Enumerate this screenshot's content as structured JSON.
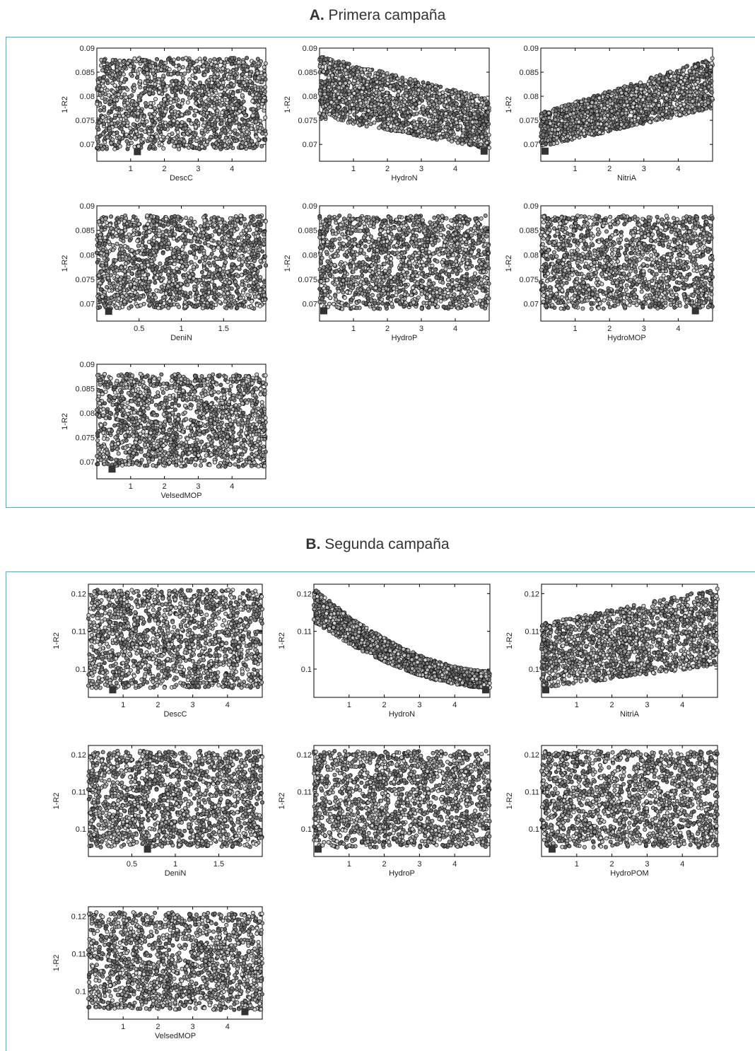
{
  "sections": [
    {
      "letter": "A.",
      "title": "Primera campaña"
    },
    {
      "letter": "B.",
      "title": "Segunda campaña"
    }
  ],
  "chart_data": [
    {
      "type": "scatter",
      "section": "A",
      "xlabel": "DescC",
      "ylabel": "1-R2",
      "xlim": [
        0,
        5
      ],
      "ylim": [
        0.0665,
        0.09
      ],
      "xticks": [
        1,
        2,
        3,
        4
      ],
      "yticks": [
        0.07,
        0.075,
        0.08,
        0.085,
        0.09
      ],
      "ytick_labels": [
        "0.07",
        "0.075",
        "0.08",
        "0.085",
        "0.09"
      ],
      "xtick_labels": [
        "1",
        "2",
        "3",
        "4"
      ],
      "trend": "flat",
      "n_points": 1500,
      "y_min": 0.069,
      "y_max": 0.088,
      "best": [
        1.2,
        0.0685
      ]
    },
    {
      "type": "scatter",
      "section": "A",
      "xlabel": "HydroN",
      "ylabel": "1-R2",
      "xlim": [
        0,
        5
      ],
      "ylim": [
        0.0665,
        0.09
      ],
      "xticks": [
        1,
        2,
        3,
        4
      ],
      "yticks": [
        0.07,
        0.075,
        0.08,
        0.085,
        0.09
      ],
      "ytick_labels": [
        "0.07",
        "0.075",
        "0.08",
        "0.085",
        "0.09"
      ],
      "xtick_labels": [
        "1",
        "2",
        "3",
        "4"
      ],
      "trend": "decreasing",
      "n_points": 1500,
      "trend_start": [
        0.0755,
        0.0885
      ],
      "trend_end": [
        0.069,
        0.0795
      ],
      "best": [
        4.85,
        0.0686
      ]
    },
    {
      "type": "scatter",
      "section": "A",
      "xlabel": "NitriA",
      "ylabel": "1-R2",
      "xlim": [
        0,
        5
      ],
      "ylim": [
        0.0665,
        0.09
      ],
      "xticks": [
        1,
        2,
        3,
        4
      ],
      "yticks": [
        0.07,
        0.075,
        0.08,
        0.085,
        0.09
      ],
      "ytick_labels": [
        "0.07",
        "0.075",
        "0.08",
        "0.085",
        "0.09"
      ],
      "xtick_labels": [
        "1",
        "2",
        "3",
        "4"
      ],
      "trend": "increasing",
      "n_points": 1500,
      "trend_start": [
        0.0695,
        0.0765
      ],
      "trend_end": [
        0.0775,
        0.088
      ],
      "best": [
        0.1,
        0.0686
      ]
    },
    {
      "type": "scatter",
      "section": "A",
      "xlabel": "DeniN",
      "ylabel": "1-R2",
      "xlim": [
        0,
        2
      ],
      "ylim": [
        0.0665,
        0.09
      ],
      "xticks": [
        0.5,
        1,
        1.5
      ],
      "yticks": [
        0.07,
        0.075,
        0.08,
        0.085,
        0.09
      ],
      "ytick_labels": [
        "0.07",
        "0.075",
        "0.08",
        "0.085",
        "0.09"
      ],
      "xtick_labels": [
        "0.5",
        "1",
        "1.5"
      ],
      "trend": "flat",
      "n_points": 1500,
      "y_min": 0.069,
      "y_max": 0.088,
      "best": [
        0.14,
        0.0685
      ]
    },
    {
      "type": "scatter",
      "section": "A",
      "xlabel": "HydroP",
      "ylabel": "1-R2",
      "xlim": [
        0,
        5
      ],
      "ylim": [
        0.0665,
        0.09
      ],
      "xticks": [
        1,
        2,
        3,
        4
      ],
      "yticks": [
        0.07,
        0.075,
        0.08,
        0.085,
        0.09
      ],
      "ytick_labels": [
        "0.07",
        "0.075",
        "0.08",
        "0.085",
        "0.09"
      ],
      "xtick_labels": [
        "1",
        "2",
        "3",
        "4"
      ],
      "trend": "flat",
      "n_points": 1500,
      "y_min": 0.069,
      "y_max": 0.088,
      "best": [
        0.1,
        0.0686
      ]
    },
    {
      "type": "scatter",
      "section": "A",
      "xlabel": "HydroMOP",
      "ylabel": "1-R2",
      "xlim": [
        0,
        5
      ],
      "ylim": [
        0.0665,
        0.09
      ],
      "xticks": [
        1,
        2,
        3,
        4
      ],
      "yticks": [
        0.07,
        0.075,
        0.08,
        0.085,
        0.09
      ],
      "ytick_labels": [
        "0.07",
        "0.075",
        "0.08",
        "0.085",
        "0.09"
      ],
      "xtick_labels": [
        "1",
        "2",
        "3",
        "4"
      ],
      "trend": "flat",
      "n_points": 1500,
      "y_min": 0.069,
      "y_max": 0.088,
      "best": [
        4.5,
        0.0686
      ]
    },
    {
      "type": "scatter",
      "section": "A",
      "xlabel": "VelsedMOP",
      "ylabel": "1-R2",
      "xlim": [
        0,
        5
      ],
      "ylim": [
        0.0665,
        0.09
      ],
      "xticks": [
        1,
        2,
        3,
        4
      ],
      "yticks": [
        0.07,
        0.075,
        0.08,
        0.085,
        0.09
      ],
      "ytick_labels": [
        "0.07",
        "0.075",
        "0.08",
        "0.085",
        "0.09"
      ],
      "xtick_labels": [
        "1",
        "2",
        "3",
        "4"
      ],
      "trend": "flat",
      "n_points": 1500,
      "y_min": 0.069,
      "y_max": 0.088,
      "best": [
        0.45,
        0.0685
      ]
    },
    {
      "type": "scatter",
      "section": "B",
      "xlabel": "DescC",
      "ylabel": "1-R2",
      "xlim": [
        0,
        5
      ],
      "ylim": [
        0.0925,
        0.1225
      ],
      "xticks": [
        1,
        2,
        3,
        4
      ],
      "yticks": [
        0.1,
        0.11,
        0.12
      ],
      "ytick_labels": [
        "0.1",
        "0.11",
        "0.12"
      ],
      "xtick_labels": [
        "1",
        "2",
        "3",
        "4"
      ],
      "trend": "flat",
      "n_points": 1500,
      "y_min": 0.095,
      "y_max": 0.121,
      "best": [
        0.7,
        0.0945
      ]
    },
    {
      "type": "scatter",
      "section": "B",
      "xlabel": "HydroN",
      "ylabel": "1-R2",
      "xlim": [
        0,
        5
      ],
      "ylim": [
        0.0925,
        0.1225
      ],
      "xticks": [
        1,
        2,
        3,
        4
      ],
      "yticks": [
        0.1,
        0.11,
        0.12
      ],
      "ytick_labels": [
        "0.1",
        "0.11",
        "0.12"
      ],
      "xtick_labels": [
        "1",
        "2",
        "3",
        "4"
      ],
      "trend": "decreasing_curve",
      "n_points": 1500,
      "trend_start": [
        0.1125,
        0.1215
      ],
      "trend_end": [
        0.095,
        0.0995
      ],
      "best": [
        4.9,
        0.0945
      ]
    },
    {
      "type": "scatter",
      "section": "B",
      "xlabel": "NitriA",
      "ylabel": "1-R2",
      "xlim": [
        0,
        5
      ],
      "ylim": [
        0.0925,
        0.1225
      ],
      "xticks": [
        1,
        2,
        3,
        4
      ],
      "yticks": [
        0.1,
        0.11,
        0.12
      ],
      "ytick_labels": [
        "0.1",
        "0.11",
        "0.12"
      ],
      "xtick_labels": [
        "1",
        "2",
        "3",
        "4"
      ],
      "trend": "increasing",
      "n_points": 1500,
      "trend_start": [
        0.095,
        0.112
      ],
      "trend_end": [
        0.101,
        0.1215
      ],
      "best": [
        0.1,
        0.0945
      ]
    },
    {
      "type": "scatter",
      "section": "B",
      "xlabel": "DeniN",
      "ylabel": "1-R2",
      "xlim": [
        0,
        2
      ],
      "ylim": [
        0.0925,
        0.1225
      ],
      "xticks": [
        0.5,
        1,
        1.5
      ],
      "yticks": [
        0.1,
        0.11,
        0.12
      ],
      "ytick_labels": [
        "0.1",
        "0.11",
        "0.12"
      ],
      "xtick_labels": [
        "0.5",
        "1",
        "1.5"
      ],
      "trend": "flat",
      "n_points": 1500,
      "y_min": 0.095,
      "y_max": 0.121,
      "best": [
        0.68,
        0.0945
      ]
    },
    {
      "type": "scatter",
      "section": "B",
      "xlabel": "HydroP",
      "ylabel": "1-R2",
      "xlim": [
        0,
        5
      ],
      "ylim": [
        0.0925,
        0.1225
      ],
      "xticks": [
        1,
        2,
        3,
        4
      ],
      "yticks": [
        0.1,
        0.11,
        0.12
      ],
      "ytick_labels": [
        "0.1",
        "0.11",
        "0.12"
      ],
      "xtick_labels": [
        "1",
        "2",
        "3",
        "4"
      ],
      "trend": "flat",
      "n_points": 1500,
      "y_min": 0.095,
      "y_max": 0.121,
      "best": [
        0.05,
        0.0945
      ]
    },
    {
      "type": "scatter",
      "section": "B",
      "xlabel": "HydroPOM",
      "ylabel": "1-R2",
      "xlim": [
        0,
        5
      ],
      "ylim": [
        0.0925,
        0.1225
      ],
      "xticks": [
        1,
        2,
        3,
        4
      ],
      "yticks": [
        0.1,
        0.11,
        0.12
      ],
      "ytick_labels": [
        "0.1",
        "0.11",
        "0.12"
      ],
      "xtick_labels": [
        "1",
        "2",
        "3",
        "4"
      ],
      "trend": "flat",
      "n_points": 1500,
      "y_min": 0.095,
      "y_max": 0.121,
      "best": [
        0.3,
        0.0945
      ]
    },
    {
      "type": "scatter",
      "section": "B",
      "xlabel": "VelsedMOP",
      "ylabel": "1-R2",
      "xlim": [
        0,
        5
      ],
      "ylim": [
        0.0925,
        0.1225
      ],
      "xticks": [
        1,
        2,
        3,
        4
      ],
      "yticks": [
        0.1,
        0.11,
        0.12
      ],
      "ytick_labels": [
        "0.1",
        "0.11",
        "0.12"
      ],
      "xtick_labels": [
        "1",
        "2",
        "3",
        "4"
      ],
      "trend": "flat",
      "n_points": 1500,
      "y_min": 0.095,
      "y_max": 0.121,
      "best": [
        4.5,
        0.0945
      ]
    }
  ],
  "colors": {
    "frame": "#3bb3e0",
    "marker_edge": "#1a1a1a",
    "best_marker": "#333333"
  }
}
